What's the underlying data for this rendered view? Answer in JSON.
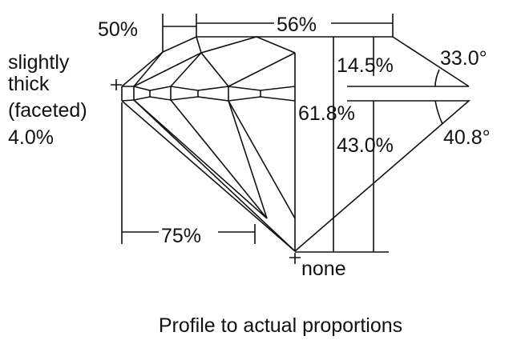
{
  "labels": {
    "crown_height": "14.5%",
    "crown_angle": "33.0°",
    "pavilion_angle": "40.8°",
    "pavilion_depth": "43.0%",
    "total_depth": "61.8%",
    "table": "56%",
    "star_length": "50%",
    "lower_half_length": "75%",
    "culet": "none",
    "girdle_line1": "slightly",
    "girdle_line2": "thick",
    "girdle_line3": "(faceted)",
    "girdle_value": "4.0%"
  },
  "caption": "Profile to actual proportions"
}
